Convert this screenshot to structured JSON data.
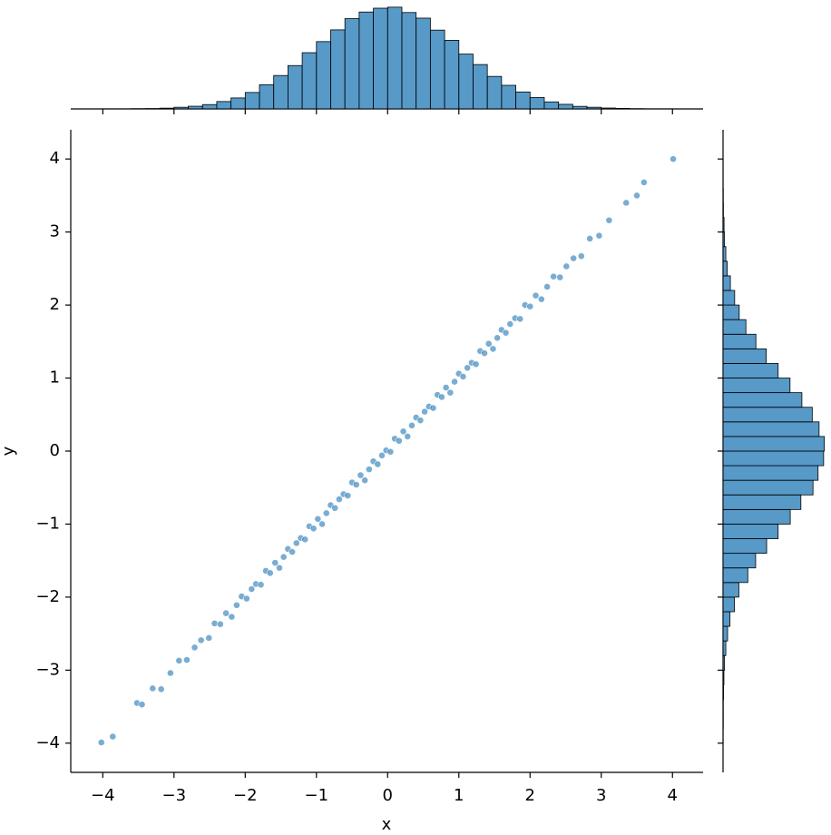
{
  "chart_data": [
    {
      "type": "scatter",
      "xlabel": "x",
      "ylabel": "y",
      "color": "#1f77b4",
      "xlim": [
        -4.45,
        4.43
      ],
      "ylim": [
        -4.4,
        4.4
      ],
      "xticks": [
        {
          "value": -4,
          "label": "−4"
        },
        {
          "value": -3,
          "label": "−3"
        },
        {
          "value": -2,
          "label": "−2"
        },
        {
          "value": -1,
          "label": "−1"
        },
        0,
        1,
        2,
        3,
        4
      ],
      "yticks": [
        {
          "value": -4,
          "label": "−4"
        },
        {
          "value": -3,
          "label": "−3"
        },
        {
          "value": -2,
          "label": "−2"
        },
        {
          "value": -1,
          "label": "−1"
        },
        0,
        1,
        2,
        3,
        4
      ],
      "x": [
        -4.02,
        -3.86,
        -3.52,
        -3.45,
        -3.3,
        -3.18,
        -3.05,
        -2.93,
        -2.82,
        -2.71,
        -2.62,
        -2.51,
        -2.43,
        -2.35,
        -2.27,
        -2.19,
        -2.12,
        -2.05,
        -1.98,
        -1.91,
        -1.85,
        -1.78,
        -1.71,
        -1.65,
        -1.58,
        -1.52,
        -1.46,
        -1.4,
        -1.34,
        -1.28,
        -1.22,
        -1.16,
        -1.1,
        -1.04,
        -0.98,
        -0.92,
        -0.86,
        -0.8,
        -0.74,
        -0.68,
        -0.62,
        -0.56,
        -0.5,
        -0.44,
        -0.38,
        -0.32,
        -0.26,
        -0.2,
        -0.14,
        -0.08,
        -0.02,
        0.04,
        0.1,
        0.16,
        0.22,
        0.28,
        0.34,
        0.4,
        0.46,
        0.52,
        0.58,
        0.64,
        0.7,
        0.76,
        0.82,
        0.88,
        0.94,
        1.0,
        1.06,
        1.12,
        1.18,
        1.24,
        1.3,
        1.36,
        1.42,
        1.48,
        1.54,
        1.6,
        1.66,
        1.72,
        1.79,
        1.86,
        1.93,
        2.0,
        2.08,
        2.16,
        2.24,
        2.33,
        2.42,
        2.51,
        2.61,
        2.72,
        2.84,
        2.97,
        3.11,
        3.35,
        3.5,
        3.6,
        4.01
      ],
      "values": [
        -3.99,
        -3.91,
        -3.45,
        -3.47,
        -3.25,
        -3.26,
        -3.04,
        -2.87,
        -2.86,
        -2.69,
        -2.59,
        -2.56,
        -2.36,
        -2.37,
        -2.22,
        -2.27,
        -2.11,
        -1.99,
        -2.02,
        -1.89,
        -1.82,
        -1.83,
        -1.64,
        -1.67,
        -1.53,
        -1.6,
        -1.45,
        -1.34,
        -1.38,
        -1.26,
        -1.19,
        -1.21,
        -1.03,
        -1.06,
        -0.93,
        -1.0,
        -0.85,
        -0.74,
        -0.78,
        -0.66,
        -0.59,
        -0.61,
        -0.43,
        -0.46,
        -0.33,
        -0.4,
        -0.25,
        -0.14,
        -0.18,
        -0.06,
        0.01,
        -0.01,
        0.17,
        0.14,
        0.27,
        0.2,
        0.35,
        0.46,
        0.42,
        0.54,
        0.61,
        0.59,
        0.77,
        0.74,
        0.87,
        0.8,
        0.95,
        1.06,
        1.02,
        1.14,
        1.21,
        1.19,
        1.37,
        1.34,
        1.47,
        1.4,
        1.55,
        1.66,
        1.62,
        1.74,
        1.82,
        1.81,
        2.0,
        1.98,
        2.13,
        2.08,
        2.25,
        2.39,
        2.38,
        2.53,
        2.64,
        2.67,
        2.91,
        2.95,
        3.16,
        3.4,
        3.5,
        3.68,
        4.0
      ]
    },
    {
      "type": "histogram",
      "orientation": "vertical",
      "color": "#1f77b4",
      "ylim": [
        0,
        840
      ],
      "bins": [
        -4.0,
        -3.8,
        -3.6,
        -3.4,
        -3.2,
        -3.0,
        -2.8,
        -2.6,
        -2.4,
        -2.2,
        -2.0,
        -1.8,
        -1.6,
        -1.4,
        -1.2,
        -1.0,
        -0.8,
        -0.6,
        -0.4,
        -0.2,
        0.0,
        0.2,
        0.4,
        0.6,
        0.8,
        1.0,
        1.2,
        1.4,
        1.6,
        1.8,
        2.0,
        2.2,
        2.4,
        2.6,
        2.8,
        3.0,
        3.2,
        3.4,
        3.6,
        3.8,
        4.0
      ],
      "values": [
        1,
        1,
        2,
        3,
        6,
        13,
        21,
        34,
        58,
        86,
        129,
        190,
        262,
        340,
        441,
        528,
        620,
        708,
        760,
        790,
        798,
        756,
        712,
        618,
        538,
        430,
        348,
        255,
        185,
        133,
        90,
        55,
        36,
        20,
        13,
        7,
        4,
        2,
        1,
        1
      ]
    },
    {
      "type": "histogram",
      "orientation": "horizontal",
      "color": "#1f77b4",
      "xlim": [
        0,
        840
      ],
      "bins": [
        -4.0,
        -3.8,
        -3.6,
        -3.4,
        -3.2,
        -3.0,
        -2.8,
        -2.6,
        -2.4,
        -2.2,
        -2.0,
        -1.8,
        -1.6,
        -1.4,
        -1.2,
        -1.0,
        -0.8,
        -0.6,
        -0.4,
        -0.2,
        0.0,
        0.2,
        0.4,
        0.6,
        0.8,
        1.0,
        1.2,
        1.4,
        1.6,
        1.8,
        2.0,
        2.2,
        2.4,
        2.6,
        2.8,
        3.0,
        3.2,
        3.4,
        3.6,
        3.8,
        4.0
      ],
      "values": [
        1,
        2,
        2,
        4,
        7,
        12,
        22,
        36,
        55,
        90,
        125,
        196,
        258,
        345,
        436,
        532,
        616,
        712,
        752,
        796,
        802,
        760,
        706,
        624,
        530,
        436,
        342,
        260,
        181,
        128,
        92,
        58,
        33,
        22,
        12,
        8,
        3,
        2,
        1,
        1
      ]
    }
  ]
}
